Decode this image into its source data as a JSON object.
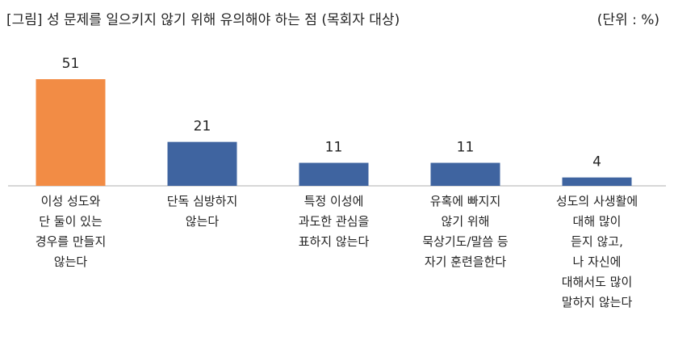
{
  "header": {
    "title": "[그림] 성 문제를 일으키지 않기 위해 유의해야 하는 점 (목회자 대상)",
    "unit": "(단위 : %)"
  },
  "colors": {
    "highlight": "#F28C45",
    "bar": "#3F64A0",
    "axis": "#BFBFBF"
  },
  "chart_data": {
    "type": "bar",
    "title": "[그림] 성 문제를 일으키지 않기 위해 유의해야 하는 점 (목회자 대상)",
    "unit": "(단위 : %)",
    "categories": [
      "이성 성도와 단 둘이 있는 경우를 만들지 않는다",
      "단독 심방하지 않는다",
      "특정 이성에 과도한 관심을 표하지 않는다",
      "유혹에 빠지지 않기 위해 묵상기도/말씀 등 자기 훈련을한다",
      "성도의 사생활에 대해 많이 듣지 않고, 나 자신에 대해서도 많이 말하지 않는다"
    ],
    "category_lines": [
      [
        "이성 성도와",
        "단 둘이 있는",
        "경우를 만들지",
        "않는다"
      ],
      [
        "단독 심방하지",
        "않는다"
      ],
      [
        "특정 이성에",
        "과도한 관심을",
        "표하지 않는다"
      ],
      [
        "유혹에 빠지지",
        "않기 위해",
        "묵상기도/말씀 등",
        "자기 훈련을한다"
      ],
      [
        "성도의 사생활에",
        "대해 많이",
        "듣지 않고,",
        "나 자신에",
        "대해서도 많이",
        "말하지 않는다"
      ]
    ],
    "values": [
      51,
      21,
      11,
      11,
      4
    ],
    "highlight_index": 0,
    "ylim": [
      0,
      51
    ],
    "grid": false,
    "legend": "none"
  }
}
